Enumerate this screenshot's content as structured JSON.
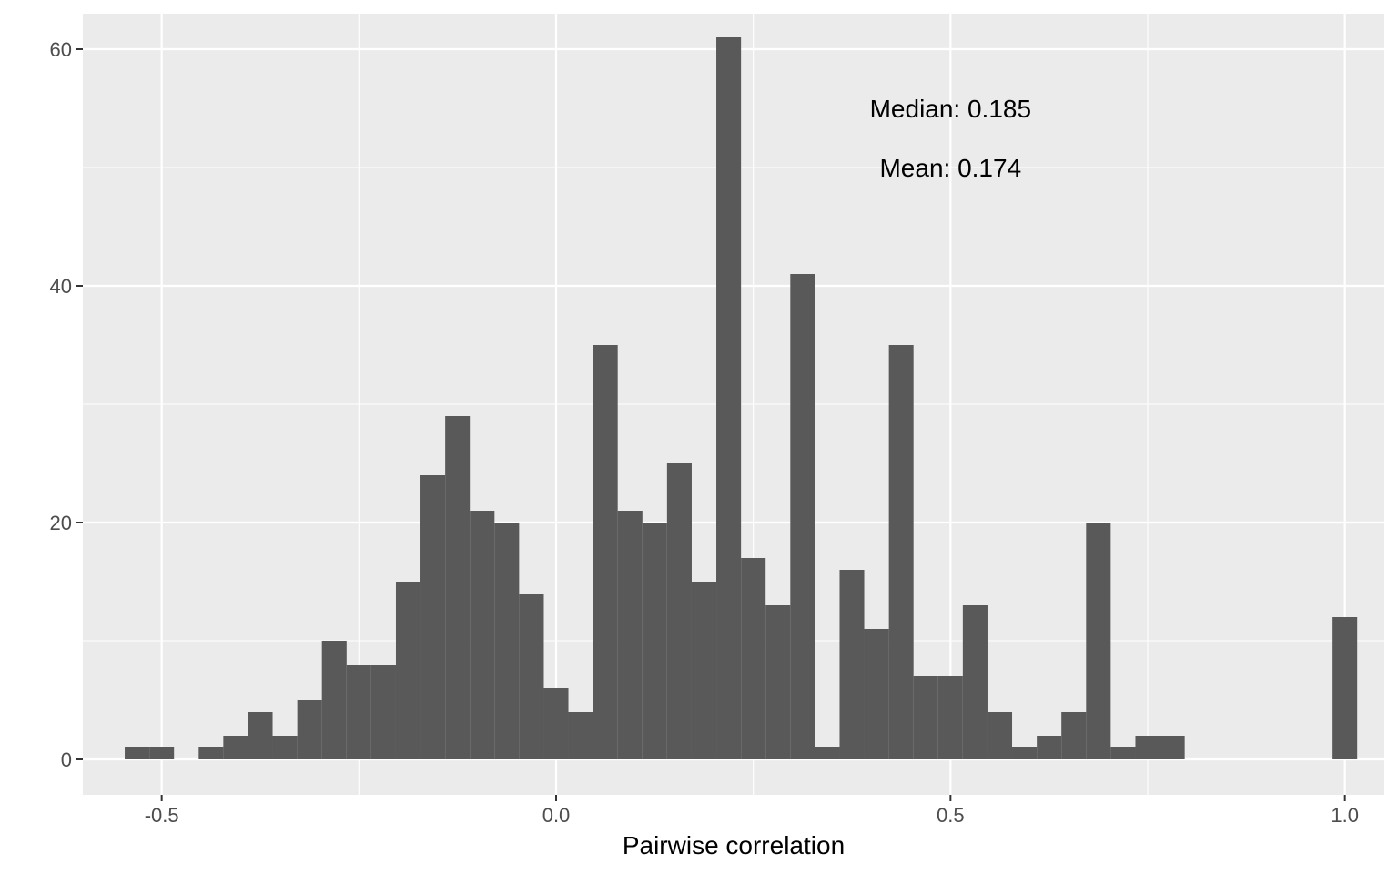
{
  "chart_data": {
    "type": "histogram",
    "title": "",
    "xlabel": "Pairwise correlation",
    "ylabel": "",
    "xlim": [
      -0.6,
      1.05
    ],
    "ylim": [
      -3,
      63
    ],
    "bin_width": 0.03125,
    "x_ticks": [
      -0.5,
      0.0,
      0.5,
      1.0
    ],
    "x_tick_labels": [
      "-0.5",
      "0.0",
      "0.5",
      "1.0"
    ],
    "y_ticks": [
      0,
      20,
      40,
      60
    ],
    "y_tick_labels": [
      "0",
      "20",
      "40",
      "60"
    ],
    "grid": true,
    "bar_color": "#595959",
    "panel_color": "#ebebeb",
    "bins": [
      {
        "x0": -0.5469,
        "x1": -0.5156,
        "count": 1
      },
      {
        "x0": -0.5156,
        "x1": -0.4844,
        "count": 1
      },
      {
        "x0": -0.4531,
        "x1": -0.4219,
        "count": 1
      },
      {
        "x0": -0.4219,
        "x1": -0.3906,
        "count": 2
      },
      {
        "x0": -0.3906,
        "x1": -0.3594,
        "count": 4
      },
      {
        "x0": -0.3594,
        "x1": -0.3281,
        "count": 2
      },
      {
        "x0": -0.3281,
        "x1": -0.2969,
        "count": 5
      },
      {
        "x0": -0.2969,
        "x1": -0.2656,
        "count": 10
      },
      {
        "x0": -0.2656,
        "x1": -0.2344,
        "count": 8
      },
      {
        "x0": -0.2344,
        "x1": -0.2031,
        "count": 8
      },
      {
        "x0": -0.2031,
        "x1": -0.1719,
        "count": 15
      },
      {
        "x0": -0.1719,
        "x1": -0.1406,
        "count": 24
      },
      {
        "x0": -0.1406,
        "x1": -0.1094,
        "count": 29
      },
      {
        "x0": -0.1094,
        "x1": -0.0781,
        "count": 21
      },
      {
        "x0": -0.0781,
        "x1": -0.0469,
        "count": 20
      },
      {
        "x0": -0.0469,
        "x1": -0.0156,
        "count": 14
      },
      {
        "x0": -0.0156,
        "x1": 0.0156,
        "count": 6
      },
      {
        "x0": 0.0156,
        "x1": 0.0469,
        "count": 4
      },
      {
        "x0": 0.0469,
        "x1": 0.0781,
        "count": 35
      },
      {
        "x0": 0.0781,
        "x1": 0.1094,
        "count": 21
      },
      {
        "x0": 0.1094,
        "x1": 0.1406,
        "count": 20
      },
      {
        "x0": 0.1406,
        "x1": 0.1719,
        "count": 25
      },
      {
        "x0": 0.1719,
        "x1": 0.2031,
        "count": 15
      },
      {
        "x0": 0.2031,
        "x1": 0.2344,
        "count": 61
      },
      {
        "x0": 0.2344,
        "x1": 0.2656,
        "count": 17
      },
      {
        "x0": 0.2656,
        "x1": 0.2969,
        "count": 13
      },
      {
        "x0": 0.2969,
        "x1": 0.3281,
        "count": 41
      },
      {
        "x0": 0.3281,
        "x1": 0.3594,
        "count": 1
      },
      {
        "x0": 0.3594,
        "x1": 0.3906,
        "count": 16
      },
      {
        "x0": 0.3906,
        "x1": 0.4219,
        "count": 11
      },
      {
        "x0": 0.4219,
        "x1": 0.4531,
        "count": 35
      },
      {
        "x0": 0.4531,
        "x1": 0.4844,
        "count": 7
      },
      {
        "x0": 0.4844,
        "x1": 0.5156,
        "count": 7
      },
      {
        "x0": 0.5156,
        "x1": 0.5469,
        "count": 13
      },
      {
        "x0": 0.5469,
        "x1": 0.5781,
        "count": 4
      },
      {
        "x0": 0.5781,
        "x1": 0.6094,
        "count": 1
      },
      {
        "x0": 0.6094,
        "x1": 0.6406,
        "count": 2
      },
      {
        "x0": 0.6406,
        "x1": 0.6719,
        "count": 4
      },
      {
        "x0": 0.6719,
        "x1": 0.7031,
        "count": 20
      },
      {
        "x0": 0.7031,
        "x1": 0.7344,
        "count": 1
      },
      {
        "x0": 0.7344,
        "x1": 0.7656,
        "count": 2
      },
      {
        "x0": 0.7656,
        "x1": 0.7969,
        "count": 2
      },
      {
        "x0": 0.9844,
        "x1": 1.0156,
        "count": 12
      }
    ],
    "annotations": [
      {
        "text": "Median: 0.185",
        "x": 0.5,
        "y": 55
      },
      {
        "text": "Mean: 0.174",
        "x": 0.5,
        "y": 50
      }
    ]
  }
}
